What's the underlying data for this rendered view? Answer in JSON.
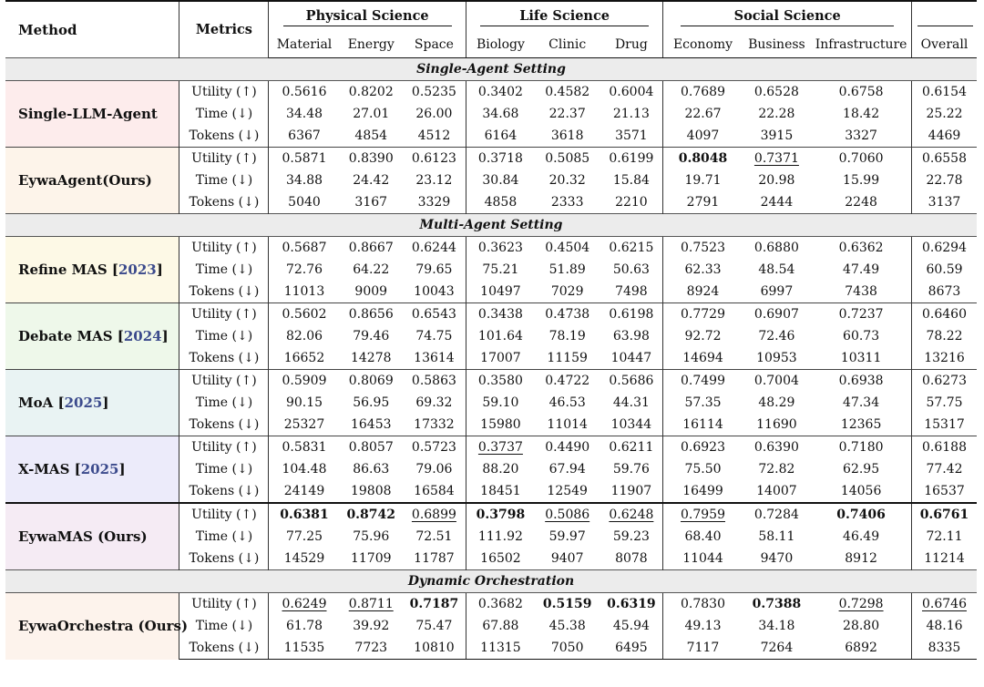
{
  "headers": {
    "method": "Method",
    "metrics": "Metrics",
    "groups": [
      "Physical Science",
      "Life Science",
      "Social Science"
    ],
    "columns": [
      "Material",
      "Energy",
      "Space",
      "Biology",
      "Clinic",
      "Drug",
      "Economy",
      "Business",
      "Infrastructure",
      "Overall"
    ]
  },
  "sections": {
    "single": "Single-Agent Setting",
    "multi": "Multi-Agent Setting",
    "dynamic": "Dynamic Orchestration"
  },
  "metric_labels": [
    "Utility (↑)",
    "Time (↓)",
    "Tokens (↓)"
  ],
  "methods": [
    {
      "name": "Single-LLM-Agent",
      "cite": "",
      "rows": [
        [
          "0.5616",
          "0.8202",
          "0.5235",
          "0.3402",
          "0.4582",
          "0.6004",
          "0.7689",
          "0.6528",
          "0.6758",
          "0.6154"
        ],
        [
          "34.48",
          "27.01",
          "26.00",
          "34.68",
          "22.37",
          "21.13",
          "22.67",
          "22.28",
          "18.42",
          "25.22"
        ],
        [
          "6367",
          "4854",
          "4512",
          "6164",
          "3618",
          "3571",
          "4097",
          "3915",
          "3327",
          "4469"
        ]
      ]
    },
    {
      "name": "EywaAgent(Ours)",
      "cite": "",
      "rows": [
        [
          "0.5871",
          "0.8390",
          "0.6123",
          "0.3718",
          "0.5085",
          "0.6199",
          "0.8048",
          "0.7371",
          "0.7060",
          "0.6558"
        ],
        [
          "34.88",
          "24.42",
          "23.12",
          "30.84",
          "20.32",
          "15.84",
          "19.71",
          "20.98",
          "15.99",
          "22.78"
        ],
        [
          "5040",
          "3167",
          "3329",
          "4858",
          "2333",
          "2210",
          "2791",
          "2444",
          "2248",
          "3137"
        ]
      ]
    },
    {
      "name": "Refine MAS",
      "cite": "2023",
      "rows": [
        [
          "0.5687",
          "0.8667",
          "0.6244",
          "0.3623",
          "0.4504",
          "0.6215",
          "0.7523",
          "0.6880",
          "0.6362",
          "0.6294"
        ],
        [
          "72.76",
          "64.22",
          "79.65",
          "75.21",
          "51.89",
          "50.63",
          "62.33",
          "48.54",
          "47.49",
          "60.59"
        ],
        [
          "11013",
          "9009",
          "10043",
          "10497",
          "7029",
          "7498",
          "8924",
          "6997",
          "7438",
          "8673"
        ]
      ]
    },
    {
      "name": "Debate MAS",
      "cite": "2024",
      "rows": [
        [
          "0.5602",
          "0.8656",
          "0.6543",
          "0.3438",
          "0.4738",
          "0.6198",
          "0.7729",
          "0.6907",
          "0.7237",
          "0.6460"
        ],
        [
          "82.06",
          "79.46",
          "74.75",
          "101.64",
          "78.19",
          "63.98",
          "92.72",
          "72.46",
          "60.73",
          "78.22"
        ],
        [
          "16652",
          "14278",
          "13614",
          "17007",
          "11159",
          "10447",
          "14694",
          "10953",
          "10311",
          "13216"
        ]
      ]
    },
    {
      "name": "MoA",
      "cite": "2025",
      "rows": [
        [
          "0.5909",
          "0.8069",
          "0.5863",
          "0.3580",
          "0.4722",
          "0.5686",
          "0.7499",
          "0.7004",
          "0.6938",
          "0.6273"
        ],
        [
          "90.15",
          "56.95",
          "69.32",
          "59.10",
          "46.53",
          "44.31",
          "57.35",
          "48.29",
          "47.34",
          "57.75"
        ],
        [
          "25327",
          "16453",
          "17332",
          "15980",
          "11014",
          "10344",
          "16114",
          "11690",
          "12365",
          "15317"
        ]
      ]
    },
    {
      "name": "X-MAS",
      "cite": "2025",
      "rows": [
        [
          "0.5831",
          "0.8057",
          "0.5723",
          "0.3737",
          "0.4490",
          "0.6211",
          "0.6923",
          "0.6390",
          "0.7180",
          "0.6188"
        ],
        [
          "104.48",
          "86.63",
          "79.06",
          "88.20",
          "67.94",
          "59.76",
          "75.50",
          "72.82",
          "62.95",
          "77.42"
        ],
        [
          "24149",
          "19808",
          "16584",
          "18451",
          "12549",
          "11907",
          "16499",
          "14007",
          "14056",
          "16537"
        ]
      ]
    },
    {
      "name": "EywaMAS (Ours)",
      "cite": "",
      "rows": [
        [
          "0.6381",
          "0.8742",
          "0.6899",
          "0.3798",
          "0.5086",
          "0.6248",
          "0.7959",
          "0.7284",
          "0.7406",
          "0.6761"
        ],
        [
          "77.25",
          "75.96",
          "72.51",
          "111.92",
          "59.97",
          "59.23",
          "68.40",
          "58.11",
          "46.49",
          "72.11"
        ],
        [
          "14529",
          "11709",
          "11787",
          "16502",
          "9407",
          "8078",
          "11044",
          "9470",
          "8912",
          "11214"
        ]
      ]
    },
    {
      "name": "EywaOrchestra (Ours)",
      "cite": "",
      "rows": [
        [
          "0.6249",
          "0.8711",
          "0.7187",
          "0.3682",
          "0.5159",
          "0.6319",
          "0.7830",
          "0.7388",
          "0.7298",
          "0.6746"
        ],
        [
          "61.78",
          "39.92",
          "75.47",
          "67.88",
          "45.38",
          "45.94",
          "49.13",
          "34.18",
          "28.80",
          "48.16"
        ],
        [
          "11535",
          "7723",
          "10810",
          "11315",
          "7050",
          "6495",
          "7117",
          "7264",
          "6892",
          "8335"
        ]
      ]
    }
  ],
  "styles": {
    "colors": {
      "section_bg": "#ececec",
      "citation": "#3b4a8c",
      "method_bg": [
        "#fdecec",
        "#fdf4ea",
        "#fdf9e6",
        "#eef8ea",
        "#e9f3f3",
        "#ecebfa",
        "#f5ebf4",
        "#fdf3ec"
      ]
    },
    "bold": [
      [
        1,
        0,
        6
      ],
      [
        6,
        0,
        0
      ],
      [
        6,
        0,
        1
      ],
      [
        6,
        0,
        3
      ],
      [
        6,
        0,
        8
      ],
      [
        6,
        0,
        9
      ],
      [
        7,
        0,
        2
      ],
      [
        7,
        0,
        4
      ],
      [
        7,
        0,
        5
      ],
      [
        7,
        0,
        7
      ]
    ],
    "underline": [
      [
        1,
        0,
        7
      ],
      [
        5,
        0,
        3
      ],
      [
        6,
        0,
        2
      ],
      [
        6,
        0,
        4
      ],
      [
        6,
        0,
        5
      ],
      [
        6,
        0,
        6
      ],
      [
        7,
        0,
        0
      ],
      [
        7,
        0,
        1
      ],
      [
        7,
        0,
        8
      ],
      [
        7,
        0,
        9
      ]
    ]
  }
}
